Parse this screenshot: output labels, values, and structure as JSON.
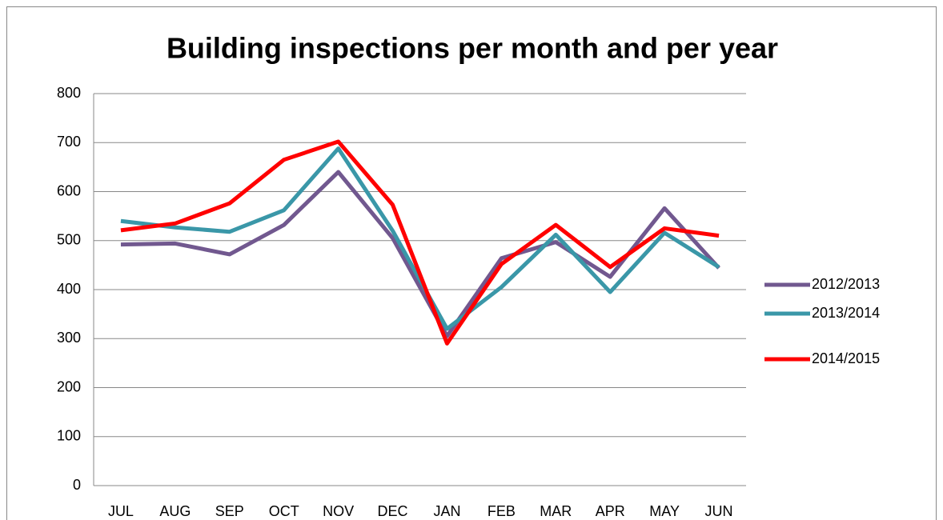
{
  "chart_data": {
    "type": "line",
    "title": "Building inspections per month and per year",
    "categories": [
      "JUL",
      "AUG",
      "SEP",
      "OCT",
      "NOV",
      "DEC",
      "JAN",
      "FEB",
      "MAR",
      "APR",
      "MAY",
      "JUN"
    ],
    "series": [
      {
        "name": "2012/2013",
        "color": "#71588f",
        "values": [
          492,
          494,
          472,
          532,
          640,
          505,
          305,
          464,
          497,
          426,
          566,
          444
        ]
      },
      {
        "name": "2013/2014",
        "color": "#3a97a8",
        "values": [
          540,
          527,
          518,
          562,
          688,
          520,
          320,
          405,
          512,
          395,
          516,
          446
        ]
      },
      {
        "name": "2014/2015",
        "color": "#ff0000",
        "values": [
          521,
          535,
          576,
          665,
          702,
          573,
          290,
          452,
          532,
          446,
          525,
          510
        ]
      }
    ],
    "ylim": [
      0,
      800
    ],
    "yticks": [
      0,
      100,
      200,
      300,
      400,
      500,
      600,
      700,
      800
    ],
    "grid": true,
    "legend": "right"
  }
}
